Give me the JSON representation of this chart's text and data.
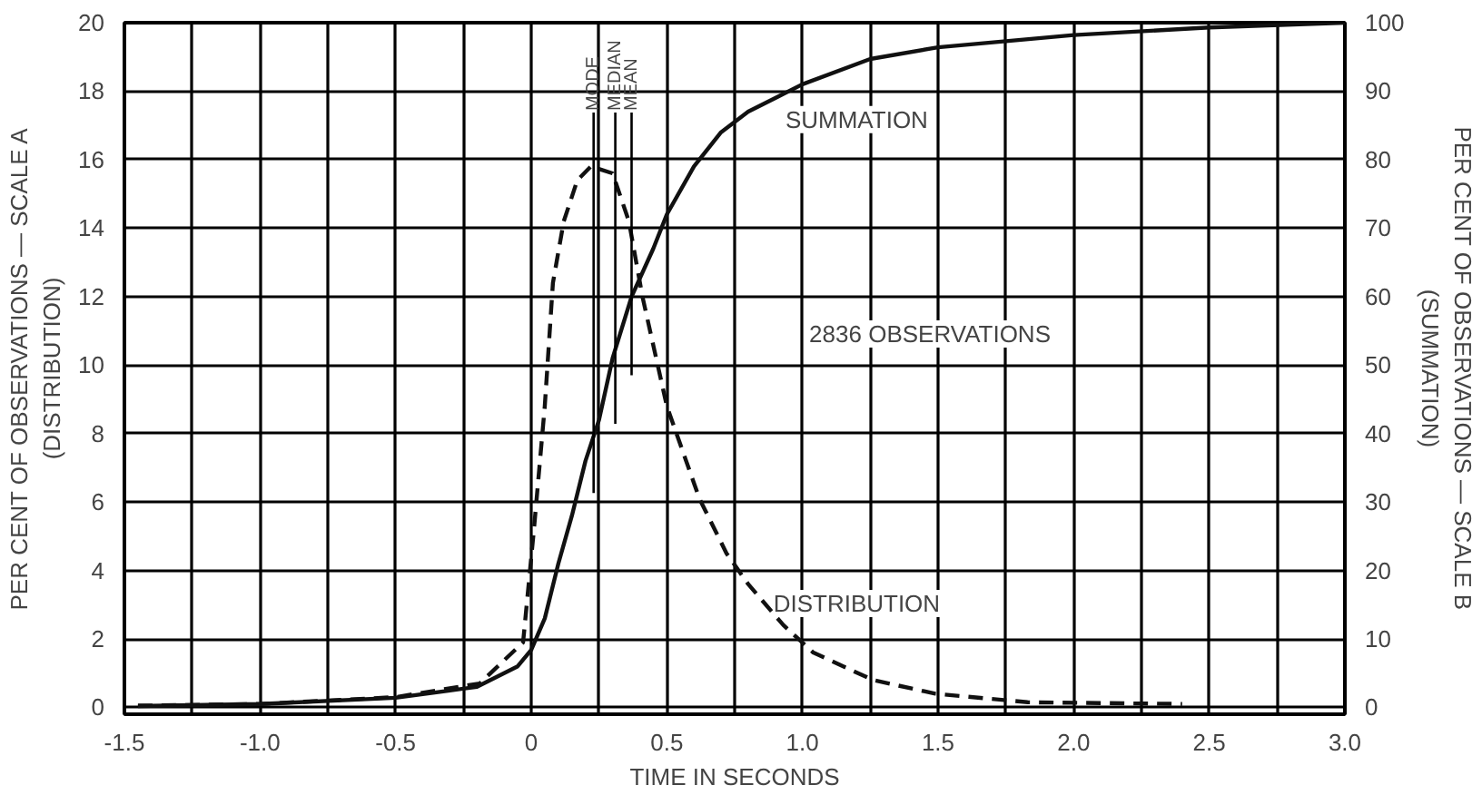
{
  "chart_data": {
    "type": "line",
    "xlabel": "TIME IN SECONDS",
    "ylabel": "PER CENT OF OBSERVATIONS — SCALE A\n(DISTRIBUTION)",
    "y2label": "PER CENT OF OBSERVATIONS — SCALE B\n(SUMMATION)",
    "xlim": [
      -1.5,
      3.0
    ],
    "ylim": [
      -0.2,
      20
    ],
    "y2lim": [
      -1,
      100
    ],
    "xticks": [
      -1.5,
      {
        "value": -1.25,
        "label": null
      },
      {
        "value": -1,
        "label": "-1.0"
      },
      {
        "value": -0.75,
        "label": null
      },
      -0.5,
      {
        "value": -0.25,
        "label": null
      },
      0,
      {
        "value": 0.25,
        "label": null
      },
      0.5,
      {
        "value": 0.75,
        "label": null
      },
      {
        "value": 1,
        "label": "1.0"
      },
      {
        "value": 1.25,
        "label": null
      },
      1.5,
      {
        "value": 1.75,
        "label": null
      },
      {
        "value": 2,
        "label": "2.0"
      },
      {
        "value": 2.25,
        "label": null
      },
      2.5,
      {
        "value": 2.75,
        "label": null
      },
      {
        "value": 3,
        "label": "3.0"
      }
    ],
    "yticks": [
      0,
      2,
      4,
      6,
      8,
      10,
      12,
      14,
      16,
      18,
      20
    ],
    "y2ticks": [
      0,
      10,
      20,
      30,
      40,
      50,
      60,
      70,
      80,
      90,
      100
    ],
    "grid": true,
    "ref_lines": [
      {
        "axis": "x",
        "value": 0.23,
        "label": "MODE"
      },
      {
        "axis": "x",
        "value": 0.31,
        "label": "MEDIAN"
      },
      {
        "axis": "x",
        "value": 0.37,
        "label": "MEAN"
      }
    ],
    "series": [
      {
        "name": "DISTRIBUTION",
        "color": "#111111",
        "line_style": "dashed",
        "axis": "y",
        "x": [
          -1.45,
          -1.0,
          -0.5,
          -0.19,
          -0.03,
          0.01,
          0.05,
          0.08,
          0.12,
          0.17,
          0.22,
          0.3,
          0.36,
          0.41,
          0.5,
          0.62,
          0.72,
          0.8,
          0.93,
          1.04,
          1.26,
          1.49,
          1.83,
          2.4
        ],
        "values": [
          0.05,
          0.1,
          0.3,
          0.7,
          1.9,
          5.2,
          8.8,
          12.4,
          14.2,
          15.4,
          15.8,
          15.6,
          14.2,
          12.0,
          8.8,
          6.1,
          4.5,
          3.6,
          2.4,
          1.6,
          0.8,
          0.4,
          0.15,
          0.1
        ]
      },
      {
        "name": "SUMMATION",
        "color": "#111111",
        "line_style": "solid",
        "axis": "y2",
        "x": [
          -1.45,
          -1.0,
          -0.5,
          -0.2,
          -0.05,
          0,
          0.05,
          0.1,
          0.15,
          0.2,
          0.25,
          0.3,
          0.37,
          0.45,
          0.5,
          0.6,
          0.7,
          0.8,
          0.9,
          1.0,
          1.25,
          1.5,
          2.0,
          2.5,
          3.0
        ],
        "values": [
          0.2,
          0.5,
          1.4,
          3,
          6,
          8.4,
          13,
          21,
          28,
          36,
          42,
          51,
          60,
          67,
          72,
          79,
          84,
          87,
          89,
          91,
          94.7,
          96.4,
          98.2,
          99.3,
          100
        ]
      }
    ],
    "annotations": [
      "2836 OBSERVATIONS"
    ]
  }
}
